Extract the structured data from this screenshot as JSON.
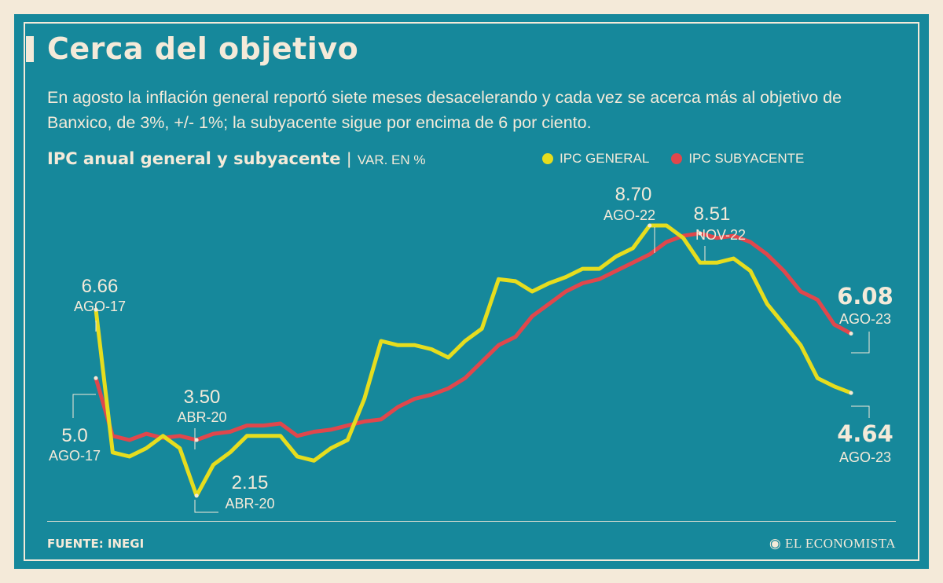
{
  "title": "Cerca del objetivo",
  "subtitle": "En agosto la inflación general reportó siete meses desacelerando y cada vez se acerca más al objetivo de Banxico, de 3%, +/- 1%;  la subyacente sigue por encima de 6 por ciento.",
  "chart_title": "IPC anual general y subyacente",
  "chart_separator": "|",
  "chart_unit": "VAR. EN %",
  "legend": {
    "general": "IPC GENERAL",
    "subyacente": "IPC SUBYACENTE"
  },
  "colors": {
    "background": "#16889b",
    "text": "#f4ead9",
    "general": "#e6dd1e",
    "subyacente": "#e0474c"
  },
  "source": "FUENTE: INEGI",
  "brand": "EL ECONOMISTA",
  "chart_data": {
    "type": "line",
    "x_range": [
      "2017-08",
      "2023-08"
    ],
    "ylim": [
      1.5,
      9.5
    ],
    "grid": false,
    "legend_position": "top-right",
    "series": [
      {
        "key": "general",
        "name": "IPC GENERAL",
        "values": [
          6.66,
          3.2,
          3.1,
          3.3,
          3.6,
          3.3,
          2.15,
          2.9,
          3.2,
          3.6,
          3.6,
          3.6,
          3.1,
          3.0,
          3.3,
          3.5,
          4.5,
          5.9,
          5.8,
          5.8,
          5.7,
          5.5,
          5.9,
          6.2,
          7.4,
          7.35,
          7.1,
          7.3,
          7.45,
          7.65,
          7.65,
          7.95,
          8.15,
          8.7,
          8.7,
          8.4,
          7.8,
          7.8,
          7.9,
          7.6,
          6.8,
          6.3,
          5.8,
          5.0,
          4.8,
          4.64
        ],
        "annotations": [
          {
            "index": 0,
            "value": "6.66",
            "label": "AGO-17"
          },
          {
            "index": 6,
            "value": "2.15",
            "label": "ABR-20"
          },
          {
            "index": 33,
            "value": "8.70",
            "label": "AGO-22"
          },
          {
            "index": 45,
            "value": "4.64",
            "label": "AGO-23"
          }
        ]
      },
      {
        "key": "subyacente",
        "name": "IPC SUBYACENTE",
        "values": [
          5.0,
          3.6,
          3.5,
          3.65,
          3.55,
          3.6,
          3.5,
          3.65,
          3.7,
          3.85,
          3.85,
          3.9,
          3.6,
          3.7,
          3.75,
          3.85,
          3.95,
          4.0,
          4.3,
          4.5,
          4.6,
          4.75,
          5.0,
          5.4,
          5.8,
          6.0,
          6.5,
          6.8,
          7.1,
          7.3,
          7.4,
          7.6,
          7.8,
          8.0,
          8.3,
          8.45,
          8.51,
          8.4,
          8.45,
          8.3,
          8.0,
          7.6,
          7.1,
          6.9,
          6.3,
          6.08
        ],
        "annotations": [
          {
            "index": 0,
            "value": "5.0",
            "label": "AGO-17"
          },
          {
            "index": 6,
            "value": "3.50",
            "label": "ABR-20"
          },
          {
            "index": 36,
            "value": "8.51",
            "label": "NOV-22"
          },
          {
            "index": 45,
            "value": "6.08",
            "label": "AGO-23"
          }
        ]
      }
    ]
  }
}
